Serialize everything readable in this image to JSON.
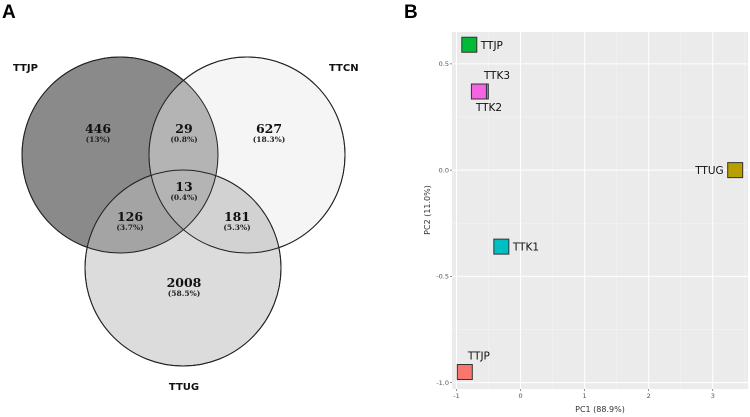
{
  "panel_a": {
    "letter": "A",
    "sets": [
      {
        "name": "TTJP",
        "fill": "#8a8a8a"
      },
      {
        "name": "TTCN",
        "fill": "#f5f5f5"
      },
      {
        "name": "TTUG",
        "fill": "#dcdcdc"
      }
    ],
    "regions": {
      "ttjp_only": {
        "count": "446",
        "pct": "(13%)"
      },
      "ttjp_ttcn": {
        "count": "29",
        "pct": "(0.8%)"
      },
      "ttcn_only": {
        "count": "627",
        "pct": "(18.3%)"
      },
      "all": {
        "count": "13",
        "pct": "(0.4%)"
      },
      "ttjp_ttug": {
        "count": "126",
        "pct": "(3.7%)"
      },
      "ttcn_ttug": {
        "count": "181",
        "pct": "(5.3%)"
      },
      "ttug_only": {
        "count": "2008",
        "pct": "(58.5%)"
      }
    }
  },
  "panel_b": {
    "letter": "B"
  },
  "chart_data": [
    {
      "type": "venn",
      "sets": [
        "TTJP",
        "TTCN",
        "TTUG"
      ],
      "regions": [
        {
          "sets": [
            "TTJP"
          ],
          "value": 446,
          "percent": 13
        },
        {
          "sets": [
            "TTJP",
            "TTCN"
          ],
          "value": 29,
          "percent": 0.8
        },
        {
          "sets": [
            "TTCN"
          ],
          "value": 627,
          "percent": 18.3
        },
        {
          "sets": [
            "TTJP",
            "TTCN",
            "TTUG"
          ],
          "value": 13,
          "percent": 0.4
        },
        {
          "sets": [
            "TTJP",
            "TTUG"
          ],
          "value": 126,
          "percent": 3.7
        },
        {
          "sets": [
            "TTCN",
            "TTUG"
          ],
          "value": 181,
          "percent": 5.3
        },
        {
          "sets": [
            "TTUG"
          ],
          "value": 2008,
          "percent": 58.5
        }
      ]
    },
    {
      "type": "scatter",
      "title": "",
      "xlabel": "PC1 (88.9%)",
      "ylabel": "PC2 (11.0%)",
      "xlim": [
        -1.07,
        3.55
      ],
      "ylim": [
        -1.03,
        0.65
      ],
      "xticks": [
        -1,
        0,
        1,
        2,
        3
      ],
      "xtick_labels": [
        "-1",
        "0",
        "1",
        "2",
        "3"
      ],
      "yticks": [
        -1.0,
        -0.5,
        0.0,
        0.5
      ],
      "ytick_labels": [
        "-1.0",
        "-0.5",
        "0.0",
        "0.5"
      ],
      "grid": true,
      "background": "#ebebeb",
      "points": [
        {
          "label": "TTK3",
          "x": -0.62,
          "y": 0.37,
          "color": "#619cff",
          "label_pos": "above-right"
        },
        {
          "label": "TTJP",
          "x": -0.8,
          "y": 0.59,
          "color": "#00ba38",
          "label_pos": "right"
        },
        {
          "label": "TTK2",
          "x": -0.65,
          "y": 0.37,
          "color": "#f564e3",
          "label_pos": "below"
        },
        {
          "label": "TTUG",
          "x": 3.35,
          "y": 0.0,
          "color": "#b79f00",
          "label_pos": "left"
        },
        {
          "label": "TTK1",
          "x": -0.3,
          "y": -0.36,
          "color": "#00bfc4",
          "label_pos": "right"
        },
        {
          "label": "TTJP",
          "x": -0.87,
          "y": -0.95,
          "color": "#f8766d",
          "label_pos": "above-right"
        }
      ]
    }
  ]
}
